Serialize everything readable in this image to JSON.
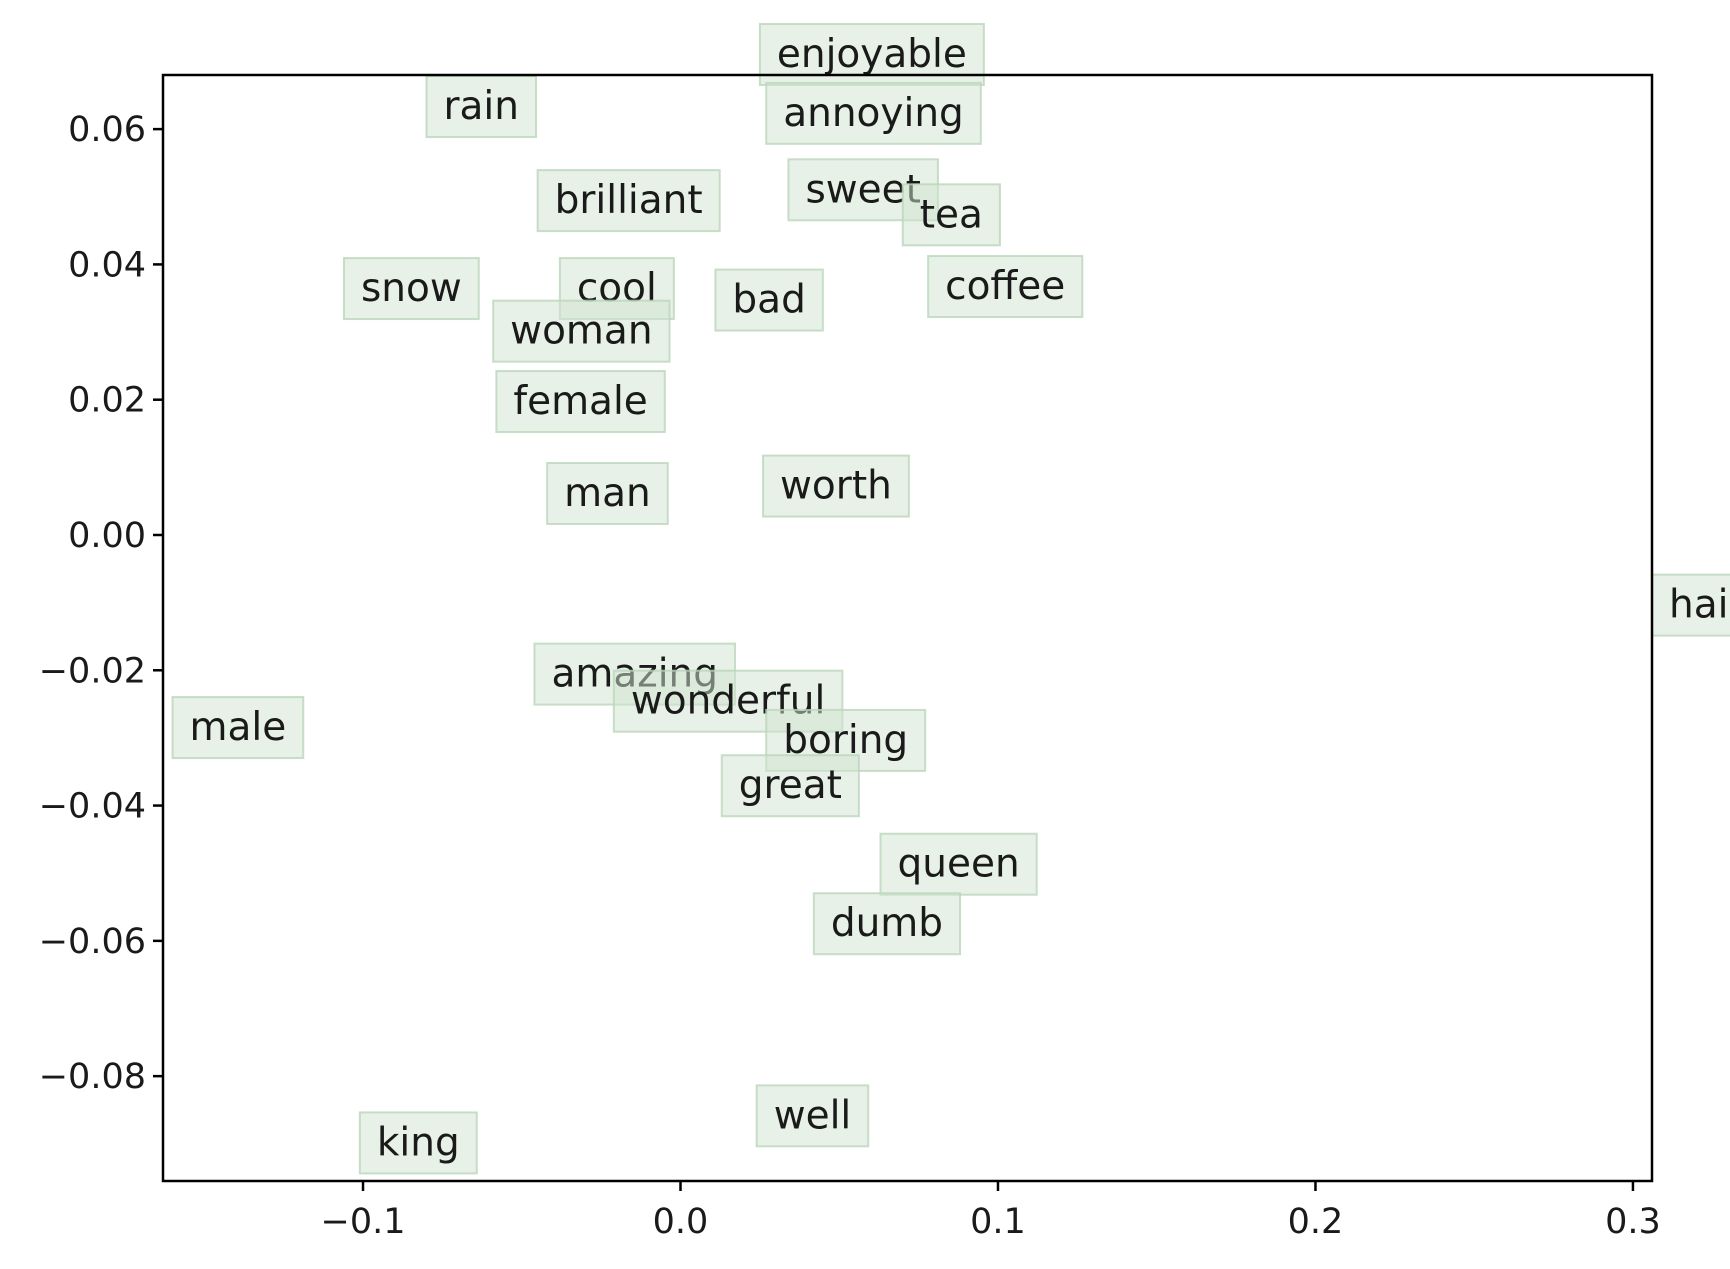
{
  "chart_data": {
    "type": "scatter",
    "title": "",
    "xlabel": "",
    "ylabel": "",
    "xlim": [
      -0.163,
      0.306
    ],
    "ylim": [
      -0.0955,
      0.068
    ],
    "grid": false,
    "legend": "none",
    "label_box_color": "#cfe3cf",
    "x_ticks": [
      {
        "value": -0.1,
        "label": "−0.1"
      },
      {
        "value": 0.0,
        "label": "0.0"
      },
      {
        "value": 0.1,
        "label": "0.1"
      },
      {
        "value": 0.2,
        "label": "0.2"
      },
      {
        "value": 0.3,
        "label": "0.3"
      }
    ],
    "y_ticks": [
      {
        "value": 0.06,
        "label": "0.06"
      },
      {
        "value": 0.04,
        "label": "0.04"
      },
      {
        "value": 0.02,
        "label": "0.02"
      },
      {
        "value": 0.0,
        "label": "0.00"
      },
      {
        "value": -0.02,
        "label": "−0.02"
      },
      {
        "value": -0.04,
        "label": "−0.04"
      },
      {
        "value": -0.06,
        "label": "−0.06"
      },
      {
        "value": -0.08,
        "label": "−0.08"
      }
    ],
    "points": [
      {
        "label": "enjoyable",
        "x": 0.025,
        "y": 0.068
      },
      {
        "label": "annoying",
        "x": 0.027,
        "y": 0.0593
      },
      {
        "label": "rain",
        "x": -0.08,
        "y": 0.0603
      },
      {
        "label": "brilliant",
        "x": -0.045,
        "y": 0.0464
      },
      {
        "label": "sweet",
        "x": 0.034,
        "y": 0.048
      },
      {
        "label": "tea",
        "x": 0.07,
        "y": 0.0443
      },
      {
        "label": "snow",
        "x": -0.106,
        "y": 0.0334
      },
      {
        "label": "cool",
        "x": -0.038,
        "y": 0.0334
      },
      {
        "label": "bad",
        "x": 0.011,
        "y": 0.0317
      },
      {
        "label": "coffee",
        "x": 0.078,
        "y": 0.0337
      },
      {
        "label": "woman",
        "x": -0.059,
        "y": 0.0271
      },
      {
        "label": "female",
        "x": -0.058,
        "y": 0.0167
      },
      {
        "label": "man",
        "x": -0.042,
        "y": 0.0031
      },
      {
        "label": "worth",
        "x": 0.026,
        "y": 0.0042
      },
      {
        "label": "hail",
        "x": 0.306,
        "y": -0.0134
      },
      {
        "label": "amazing",
        "x": -0.046,
        "y": -0.0236
      },
      {
        "label": "wonderful",
        "x": -0.021,
        "y": -0.0276
      },
      {
        "label": "male",
        "x": -0.16,
        "y": -0.0315
      },
      {
        "label": "boring",
        "x": 0.027,
        "y": -0.0334
      },
      {
        "label": "great",
        "x": 0.013,
        "y": -0.0401
      },
      {
        "label": "queen",
        "x": 0.063,
        "y": -0.0517
      },
      {
        "label": "dumb",
        "x": 0.042,
        "y": -0.0605
      },
      {
        "label": "well",
        "x": 0.024,
        "y": -0.0889
      },
      {
        "label": "king",
        "x": -0.101,
        "y": -0.0929
      }
    ]
  }
}
